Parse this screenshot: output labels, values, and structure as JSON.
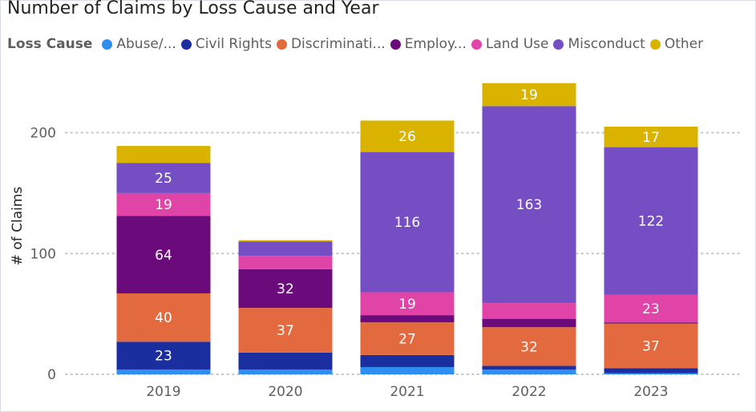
{
  "chart_data": {
    "type": "bar",
    "stacked": true,
    "title": "Number of Claims by Loss Cause and Year",
    "legend_title": "Loss Cause",
    "legend_position": "top-left",
    "xlabel": "",
    "ylabel": "# of Claims",
    "ylim": [
      0,
      240
    ],
    "yticks": [
      0,
      100,
      200
    ],
    "grid": true,
    "categories": [
      "2019",
      "2020",
      "2021",
      "2022",
      "2023"
    ],
    "series": [
      {
        "name": "Abuse/...",
        "color": "#2e8ff0",
        "values": [
          4,
          4,
          6,
          4,
          1
        ],
        "labels": [
          "",
          "",
          "",
          "",
          ""
        ]
      },
      {
        "name": "Civil Rights",
        "color": "#1a2ea0",
        "values": [
          23,
          14,
          10,
          3,
          4
        ],
        "labels": [
          "23",
          "",
          "",
          "",
          ""
        ]
      },
      {
        "name": "Discriminati...",
        "color": "#e36a3f",
        "values": [
          40,
          37,
          27,
          32,
          37
        ],
        "labels": [
          "40",
          "37",
          "27",
          "32",
          "37"
        ]
      },
      {
        "name": "Employ...",
        "color": "#6b0a7a",
        "values": [
          64,
          32,
          6,
          7,
          1
        ],
        "labels": [
          "64",
          "32",
          "",
          "",
          ""
        ]
      },
      {
        "name": "Land Use",
        "color": "#e044a7",
        "values": [
          19,
          11,
          19,
          13,
          23
        ],
        "labels": [
          "19",
          "",
          "19",
          "",
          "23"
        ]
      },
      {
        "name": "Misconduct",
        "color": "#744ec2",
        "values": [
          25,
          12,
          116,
          163,
          122
        ],
        "labels": [
          "25",
          "",
          "116",
          "163",
          "122"
        ]
      },
      {
        "name": "Other",
        "color": "#d9b300",
        "values": [
          14,
          1,
          26,
          19,
          17
        ],
        "labels": [
          "",
          "",
          "26",
          "19",
          "17"
        ]
      }
    ]
  }
}
